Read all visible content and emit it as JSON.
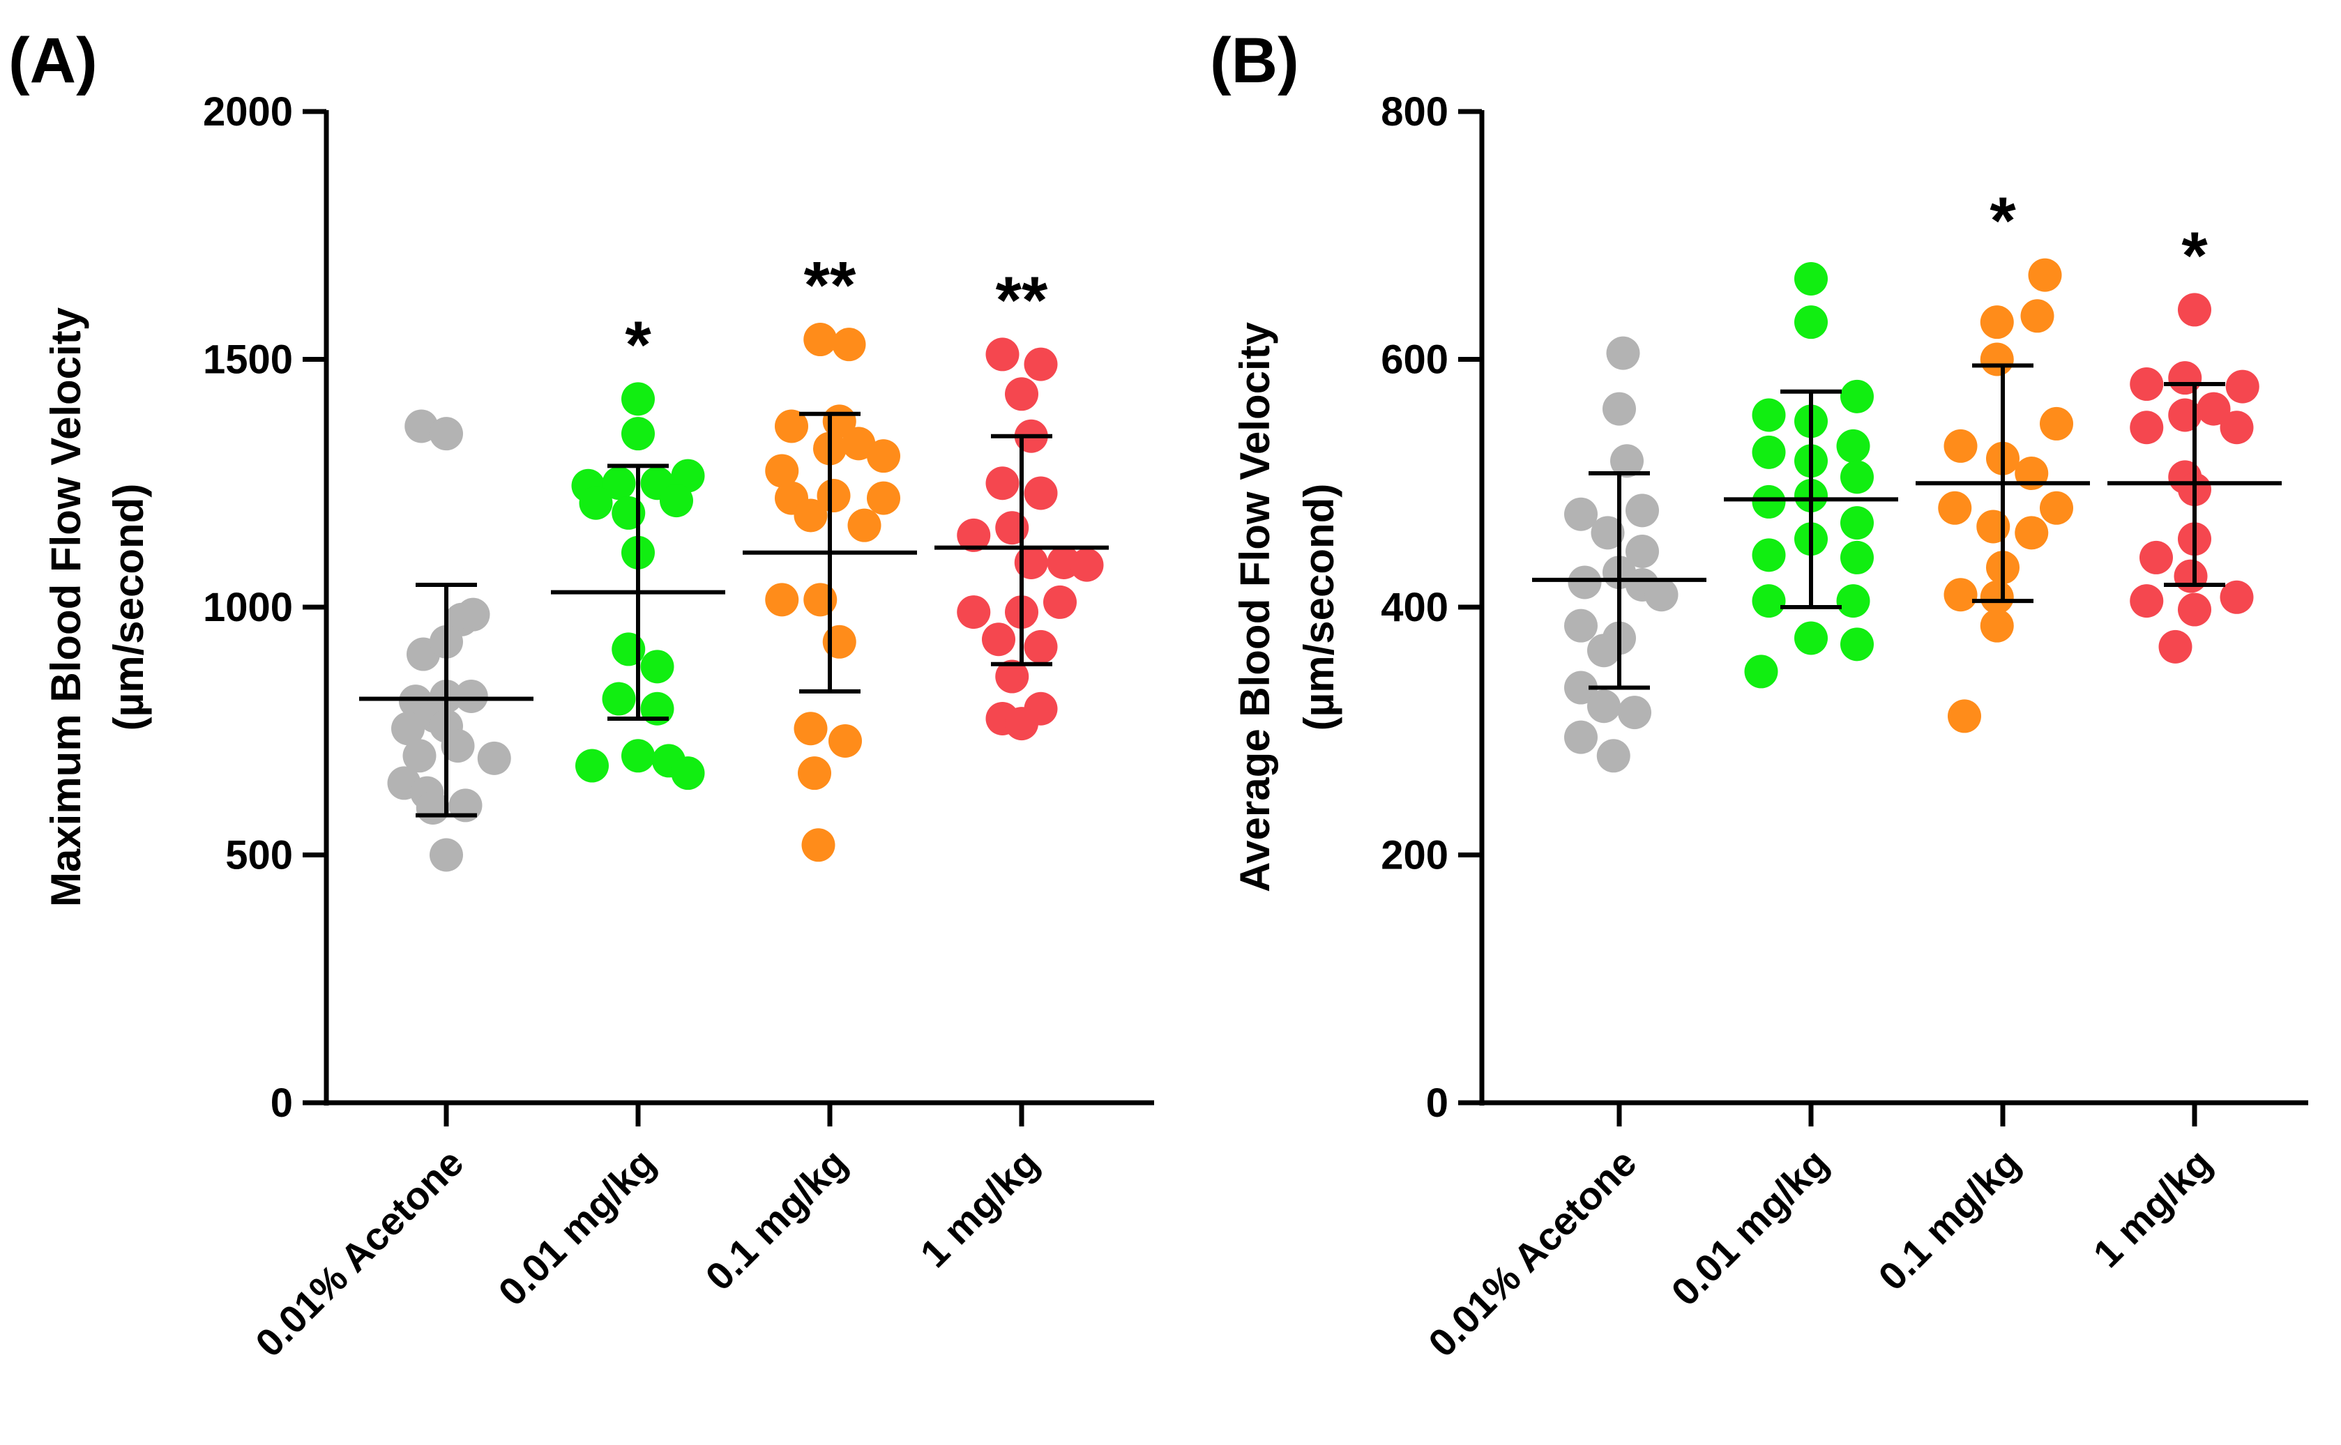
{
  "chart_data": [
    {
      "type": "scatter",
      "panel_label": "(A)",
      "ylabel": "Maximum Blood Flow Velocity",
      "ylabel_units": "(µm/second)",
      "ylim": [
        0,
        2000
      ],
      "yticks": [
        0,
        500,
        1000,
        1500,
        2000
      ],
      "categories": [
        "0.01% Acetone",
        "0.01 mg/kg",
        "0.1 mg/kg",
        "1 mg/kg"
      ],
      "significance": [
        "",
        "*",
        "**",
        "**"
      ],
      "series": [
        {
          "name": "0.01% Acetone",
          "color": "#b3b3b3",
          "mean": 815,
          "sd_low": 580,
          "sd_high": 1045,
          "points": [
            {
              "dx": -0.13,
              "y": 1365
            },
            {
              "dx": 0.0,
              "y": 1350
            },
            {
              "dx": 0.08,
              "y": 975
            },
            {
              "dx": 0.14,
              "y": 985
            },
            {
              "dx": -0.12,
              "y": 905
            },
            {
              "dx": 0.0,
              "y": 930
            },
            {
              "dx": -0.16,
              "y": 810
            },
            {
              "dx": 0.0,
              "y": 820
            },
            {
              "dx": 0.13,
              "y": 820
            },
            {
              "dx": -0.06,
              "y": 780
            },
            {
              "dx": -0.2,
              "y": 755
            },
            {
              "dx": 0.0,
              "y": 760
            },
            {
              "dx": -0.14,
              "y": 700
            },
            {
              "dx": 0.06,
              "y": 720
            },
            {
              "dx": 0.25,
              "y": 695
            },
            {
              "dx": -0.22,
              "y": 645
            },
            {
              "dx": -0.1,
              "y": 625
            },
            {
              "dx": 0.1,
              "y": 600
            },
            {
              "dx": -0.07,
              "y": 595
            },
            {
              "dx": 0.0,
              "y": 500
            }
          ]
        },
        {
          "name": "0.01 mg/kg",
          "color": "#11ee11",
          "mean": 1030,
          "sd_low": 775,
          "sd_high": 1285,
          "points": [
            {
              "dx": 0.0,
              "y": 1420
            },
            {
              "dx": 0.0,
              "y": 1350
            },
            {
              "dx": 0.26,
              "y": 1265
            },
            {
              "dx": -0.26,
              "y": 1245
            },
            {
              "dx": -0.1,
              "y": 1250
            },
            {
              "dx": 0.1,
              "y": 1250
            },
            {
              "dx": -0.22,
              "y": 1210
            },
            {
              "dx": 0.2,
              "y": 1215
            },
            {
              "dx": -0.05,
              "y": 1190
            },
            {
              "dx": 0.0,
              "y": 1110
            },
            {
              "dx": -0.05,
              "y": 915
            },
            {
              "dx": 0.1,
              "y": 880
            },
            {
              "dx": -0.1,
              "y": 815
            },
            {
              "dx": 0.1,
              "y": 795
            },
            {
              "dx": -0.24,
              "y": 680
            },
            {
              "dx": 0.0,
              "y": 700
            },
            {
              "dx": 0.16,
              "y": 690
            },
            {
              "dx": 0.26,
              "y": 665
            }
          ]
        },
        {
          "name": "0.1 mg/kg",
          "color": "#ff8c1a",
          "mean": 1110,
          "sd_low": 830,
          "sd_high": 1390,
          "points": [
            {
              "dx": -0.05,
              "y": 1540
            },
            {
              "dx": 0.1,
              "y": 1530
            },
            {
              "dx": -0.2,
              "y": 1365
            },
            {
              "dx": 0.05,
              "y": 1375
            },
            {
              "dx": 0.0,
              "y": 1320
            },
            {
              "dx": 0.15,
              "y": 1330
            },
            {
              "dx": 0.28,
              "y": 1305
            },
            {
              "dx": -0.25,
              "y": 1275
            },
            {
              "dx": -0.2,
              "y": 1220
            },
            {
              "dx": 0.02,
              "y": 1225
            },
            {
              "dx": 0.28,
              "y": 1220
            },
            {
              "dx": -0.1,
              "y": 1185
            },
            {
              "dx": 0.18,
              "y": 1165
            },
            {
              "dx": -0.25,
              "y": 1015
            },
            {
              "dx": -0.05,
              "y": 1015
            },
            {
              "dx": 0.05,
              "y": 930
            },
            {
              "dx": -0.1,
              "y": 755
            },
            {
              "dx": 0.08,
              "y": 730
            },
            {
              "dx": -0.08,
              "y": 665
            },
            {
              "dx": -0.06,
              "y": 520
            }
          ]
        },
        {
          "name": "1 mg/kg",
          "color": "#f5474f",
          "mean": 1120,
          "sd_low": 885,
          "sd_high": 1345,
          "points": [
            {
              "dx": -0.1,
              "y": 1510
            },
            {
              "dx": 0.1,
              "y": 1490
            },
            {
              "dx": 0.0,
              "y": 1430
            },
            {
              "dx": 0.05,
              "y": 1345
            },
            {
              "dx": -0.1,
              "y": 1250
            },
            {
              "dx": 0.1,
              "y": 1230
            },
            {
              "dx": -0.25,
              "y": 1145
            },
            {
              "dx": -0.05,
              "y": 1160
            },
            {
              "dx": 0.05,
              "y": 1090
            },
            {
              "dx": 0.22,
              "y": 1090
            },
            {
              "dx": 0.34,
              "y": 1085
            },
            {
              "dx": -0.25,
              "y": 990
            },
            {
              "dx": 0.0,
              "y": 990
            },
            {
              "dx": 0.2,
              "y": 1010
            },
            {
              "dx": -0.12,
              "y": 935
            },
            {
              "dx": 0.1,
              "y": 920
            },
            {
              "dx": -0.05,
              "y": 860
            },
            {
              "dx": -0.1,
              "y": 775
            },
            {
              "dx": 0.1,
              "y": 795
            },
            {
              "dx": 0.0,
              "y": 765
            }
          ]
        }
      ]
    },
    {
      "type": "scatter",
      "panel_label": "(B)",
      "ylabel": "Average Blood Flow Velocity",
      "ylabel_units": "(µm/second)",
      "ylim": [
        0,
        800
      ],
      "yticks": [
        0,
        200,
        400,
        600,
        800
      ],
      "categories": [
        "0.01% Acetone",
        "0.01 mg/kg",
        "0.1 mg/kg",
        "1 mg/kg"
      ],
      "significance": [
        "",
        "",
        "*",
        "*"
      ],
      "series": [
        {
          "name": "0.01% Acetone",
          "color": "#b3b3b3",
          "mean": 422,
          "sd_low": 335,
          "sd_high": 508,
          "points": [
            {
              "dx": 0.02,
              "y": 605
            },
            {
              "dx": 0.0,
              "y": 560
            },
            {
              "dx": 0.04,
              "y": 518
            },
            {
              "dx": -0.2,
              "y": 475
            },
            {
              "dx": 0.12,
              "y": 478
            },
            {
              "dx": -0.06,
              "y": 460
            },
            {
              "dx": 0.12,
              "y": 445
            },
            {
              "dx": 0.0,
              "y": 428
            },
            {
              "dx": -0.18,
              "y": 420
            },
            {
              "dx": 0.12,
              "y": 418
            },
            {
              "dx": 0.22,
              "y": 410
            },
            {
              "dx": -0.2,
              "y": 385
            },
            {
              "dx": 0.0,
              "y": 375
            },
            {
              "dx": -0.08,
              "y": 365
            },
            {
              "dx": -0.2,
              "y": 335
            },
            {
              "dx": -0.08,
              "y": 320
            },
            {
              "dx": 0.08,
              "y": 315
            },
            {
              "dx": -0.2,
              "y": 295
            },
            {
              "dx": -0.03,
              "y": 280
            }
          ]
        },
        {
          "name": "0.01 mg/kg",
          "color": "#11ee11",
          "mean": 487,
          "sd_low": 400,
          "sd_high": 574,
          "points": [
            {
              "dx": 0.0,
              "y": 665
            },
            {
              "dx": 0.0,
              "y": 630
            },
            {
              "dx": -0.22,
              "y": 555
            },
            {
              "dx": 0.0,
              "y": 550
            },
            {
              "dx": 0.24,
              "y": 570
            },
            {
              "dx": -0.22,
              "y": 525
            },
            {
              "dx": 0.22,
              "y": 530
            },
            {
              "dx": 0.0,
              "y": 518
            },
            {
              "dx": 0.24,
              "y": 505
            },
            {
              "dx": 0.0,
              "y": 490
            },
            {
              "dx": -0.22,
              "y": 485
            },
            {
              "dx": 0.0,
              "y": 455
            },
            {
              "dx": 0.24,
              "y": 468
            },
            {
              "dx": -0.22,
              "y": 442
            },
            {
              "dx": 0.24,
              "y": 440
            },
            {
              "dx": -0.22,
              "y": 405
            },
            {
              "dx": 0.22,
              "y": 405
            },
            {
              "dx": 0.0,
              "y": 375
            },
            {
              "dx": 0.24,
              "y": 370
            },
            {
              "dx": -0.26,
              "y": 348
            }
          ]
        },
        {
          "name": "0.1 mg/kg",
          "color": "#ff8c1a",
          "mean": 500,
          "sd_low": 405,
          "sd_high": 595,
          "points": [
            {
              "dx": 0.22,
              "y": 668
            },
            {
              "dx": -0.03,
              "y": 630
            },
            {
              "dx": 0.18,
              "y": 635
            },
            {
              "dx": -0.03,
              "y": 600
            },
            {
              "dx": -0.22,
              "y": 530
            },
            {
              "dx": 0.28,
              "y": 548
            },
            {
              "dx": 0.0,
              "y": 520
            },
            {
              "dx": 0.15,
              "y": 508
            },
            {
              "dx": -0.25,
              "y": 480
            },
            {
              "dx": 0.28,
              "y": 480
            },
            {
              "dx": -0.05,
              "y": 465
            },
            {
              "dx": 0.15,
              "y": 460
            },
            {
              "dx": 0.0,
              "y": 432
            },
            {
              "dx": -0.22,
              "y": 410
            },
            {
              "dx": -0.03,
              "y": 408
            },
            {
              "dx": -0.03,
              "y": 385
            },
            {
              "dx": -0.2,
              "y": 312
            }
          ]
        },
        {
          "name": "1 mg/kg",
          "color": "#f5474f",
          "mean": 500,
          "sd_low": 418,
          "sd_high": 580,
          "points": [
            {
              "dx": 0.0,
              "y": 640
            },
            {
              "dx": -0.25,
              "y": 580
            },
            {
              "dx": -0.05,
              "y": 585
            },
            {
              "dx": 0.25,
              "y": 578
            },
            {
              "dx": -0.05,
              "y": 555
            },
            {
              "dx": 0.1,
              "y": 560
            },
            {
              "dx": -0.25,
              "y": 545
            },
            {
              "dx": 0.22,
              "y": 545
            },
            {
              "dx": -0.05,
              "y": 505
            },
            {
              "dx": 0.0,
              "y": 495
            },
            {
              "dx": -0.2,
              "y": 440
            },
            {
              "dx": 0.0,
              "y": 455
            },
            {
              "dx": -0.02,
              "y": 425
            },
            {
              "dx": -0.25,
              "y": 405
            },
            {
              "dx": 0.0,
              "y": 398
            },
            {
              "dx": 0.22,
              "y": 408
            },
            {
              "dx": -0.1,
              "y": 368
            }
          ]
        }
      ]
    }
  ]
}
